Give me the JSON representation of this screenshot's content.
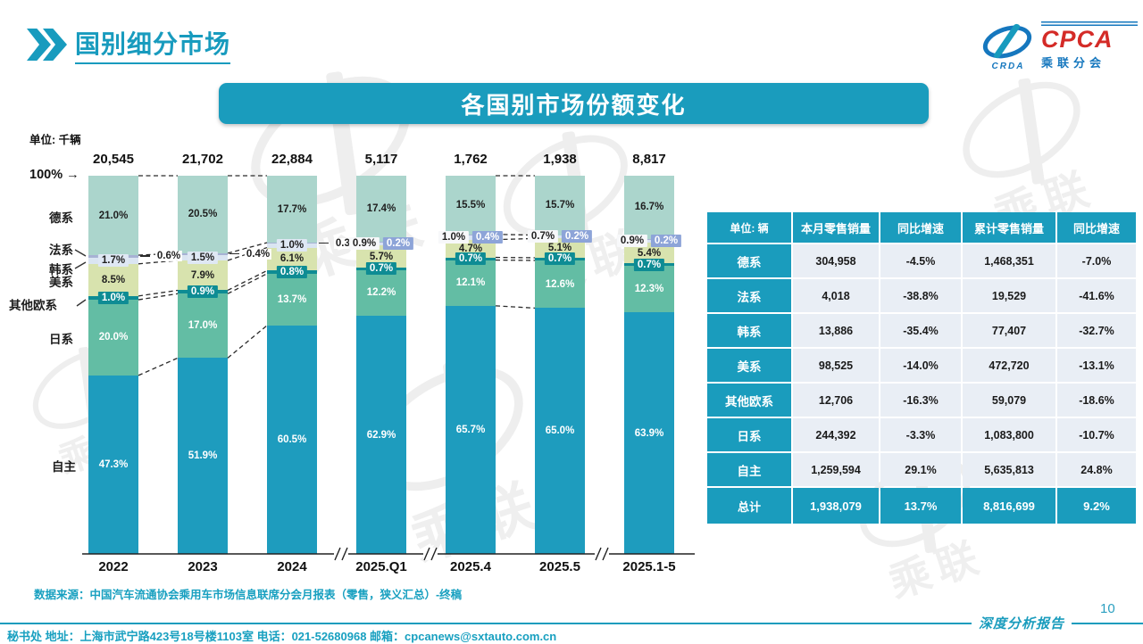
{
  "page": {
    "title": "国别细分市场",
    "banner_title": "各国别市场份额变化",
    "unit_label": "单位: 千辆",
    "hundred_label": "100%",
    "source": "数据来源：中国汽车流通协会乘用车市场信息联席分会月报表（零售，狭义汇总）-终稿",
    "footer": "秘书处  地址：上海市武宁路423号18号楼1103室 电话：021-52680968   邮箱：cpcanews@sxtauto.com.cn",
    "tagline": "深度分析报告",
    "page_number": "10"
  },
  "icons": {
    "arrow_right": "→"
  },
  "logo": {
    "crda": "CRDA",
    "cpca": "CPCA",
    "cn": "乘联分会"
  },
  "watermark_text": "乘联",
  "colors": {
    "accent": "#1A9CBD",
    "title_text": "#189BBE",
    "table_cell_bg": "#E9EEF5",
    "series": {
      "德系": "#ABD5CC",
      "法系": "#A7B2D4",
      "韩系": "#DAE5F2",
      "美系": "#D8E3AE",
      "其他欧系": "#0E8C94",
      "日系": "#63BDA4",
      "自主": "#1E9CBE"
    },
    "chip_fr": "#8DA4D8",
    "chip_kr_pale": "#DFE8F4",
    "chip_kr_white": "#F7F8FA",
    "chip_eu": "#0E8C94"
  },
  "chart_data": {
    "type": "bar",
    "stacked": true,
    "percent_axis": true,
    "unit": "千辆",
    "title": "各国别市场份额变化",
    "categories": [
      "2022",
      "2023",
      "2024",
      "2025.Q1",
      "2025.4",
      "2025.5",
      "2025.1-5"
    ],
    "totals": [
      "20,545",
      "21,702",
      "22,884",
      "5,117",
      "1,762",
      "1,938",
      "8,817"
    ],
    "series": [
      {
        "name": "德系",
        "values": [
          21.0,
          20.5,
          17.7,
          17.4,
          15.5,
          15.7,
          16.7
        ]
      },
      {
        "name": "法系",
        "values": [
          0.6,
          0.4,
          0.3,
          0.2,
          0.4,
          0.2,
          0.2
        ]
      },
      {
        "name": "韩系",
        "values": [
          1.7,
          1.5,
          1.0,
          0.9,
          1.0,
          0.7,
          0.9
        ]
      },
      {
        "name": "美系",
        "values": [
          8.5,
          7.9,
          6.1,
          5.7,
          4.7,
          5.1,
          5.4
        ]
      },
      {
        "name": "其他欧系",
        "values": [
          1.0,
          0.9,
          0.8,
          0.7,
          0.7,
          0.7,
          0.7
        ]
      },
      {
        "name": "日系",
        "values": [
          20.0,
          17.0,
          13.7,
          12.2,
          12.1,
          12.6,
          12.3
        ]
      },
      {
        "name": "自主",
        "values": [
          47.3,
          51.9,
          60.5,
          62.9,
          65.7,
          65.0,
          63.9
        ]
      }
    ],
    "ylim": [
      0,
      100
    ],
    "legend_position": "left",
    "axis_breaks_between": [
      [
        "2024",
        "2025.Q1"
      ],
      [
        "2025.Q1",
        "2025.4"
      ],
      [
        "2025.5",
        "2025.1-5"
      ]
    ],
    "dashed_connectors_between": [
      [
        "2022",
        "2023"
      ],
      [
        "2023",
        "2024"
      ],
      [
        "2025.4",
        "2025.5"
      ]
    ]
  },
  "table": {
    "header": [
      "单位: 辆",
      "本月零售销量",
      "同比增速",
      "累计零售销量",
      "同比增速"
    ],
    "rows": [
      [
        "德系",
        "304,958",
        "-4.5%",
        "1,468,351",
        "-7.0%"
      ],
      [
        "法系",
        "4,018",
        "-38.8%",
        "19,529",
        "-41.6%"
      ],
      [
        "韩系",
        "13,886",
        "-35.4%",
        "77,407",
        "-32.7%"
      ],
      [
        "美系",
        "98,525",
        "-14.0%",
        "472,720",
        "-13.1%"
      ],
      [
        "其他欧系",
        "12,706",
        "-16.3%",
        "59,079",
        "-18.6%"
      ],
      [
        "日系",
        "244,392",
        "-3.3%",
        "1,083,800",
        "-10.7%"
      ],
      [
        "自主",
        "1,259,594",
        "29.1%",
        "5,635,813",
        "24.8%"
      ]
    ],
    "total_row": [
      "总计",
      "1,938,079",
      "13.7%",
      "8,816,699",
      "9.2%"
    ]
  }
}
